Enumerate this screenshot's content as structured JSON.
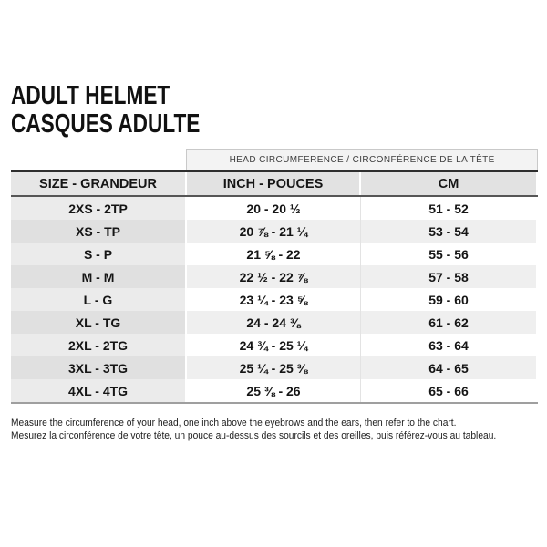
{
  "title": {
    "line1": "ADULT HELMET",
    "line2": "CASQUES ADULTE"
  },
  "table": {
    "span_header": "HEAD CIRCUMFERENCE / CIRCONFÉRENCE DE LA TÊTE",
    "columns": [
      "SIZE - GRANDEUR",
      "INCH - POUCES",
      "CM"
    ],
    "rows": [
      {
        "size": "2XS - 2TP",
        "inch": "20 - 20 ½",
        "cm": "51 - 52"
      },
      {
        "size": "XS - TP",
        "inch": "20 ⅞ - 21 ¼",
        "cm": "53 - 54"
      },
      {
        "size": "S - P",
        "inch": "21 ⅝ - 22",
        "cm": "55 - 56"
      },
      {
        "size": "M - M",
        "inch": "22 ½ - 22 ⅞",
        "cm": "57 - 58"
      },
      {
        "size": "L - G",
        "inch": "23 ¼ - 23 ⅝",
        "cm": "59 - 60"
      },
      {
        "size": "XL - TG",
        "inch": "24 - 24 ⅜",
        "cm": "61 - 62"
      },
      {
        "size": "2XL - 2TG",
        "inch": "24 ¾ - 25 ¼",
        "cm": "63 - 64"
      },
      {
        "size": "3XL - 3TG",
        "inch": "25 ¼ - 25 ⅜",
        "cm": "64 - 65"
      },
      {
        "size": "4XL - 4TG",
        "inch": "25 ⅜ - 26",
        "cm": "65 - 66"
      }
    ]
  },
  "footer": {
    "line1": "Measure the circumference of your head, one inch above the eyebrows and the ears, then refer to the chart.",
    "line2": "Mesurez la circonférence de votre tête, un pouce au-dessus des sourcils et des oreilles, puis référez-vous au tableau."
  },
  "colors": {
    "band_bg": "#f3f3f3",
    "header_bg": "#e2e2e2",
    "zebra_gray": "#efefef",
    "size_col_gray": "#ebebeb",
    "dark_border": "#2e2e2e",
    "text": "#151515"
  }
}
